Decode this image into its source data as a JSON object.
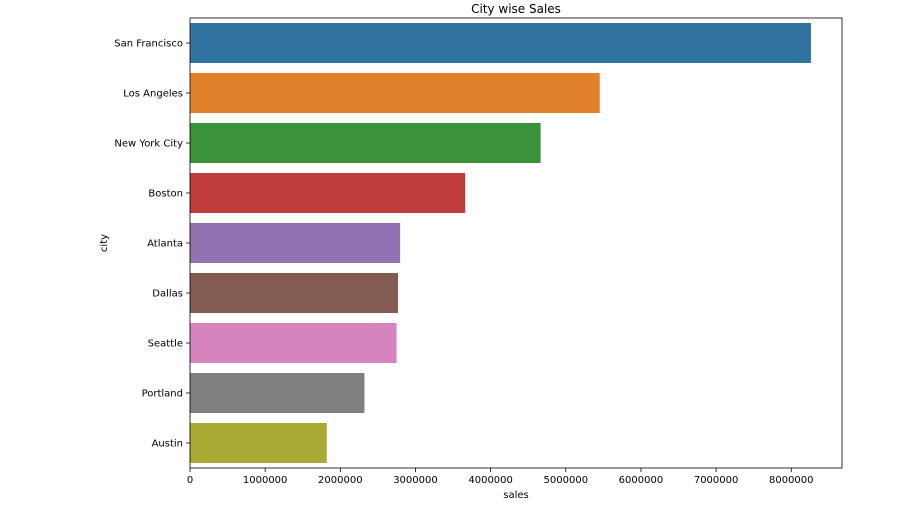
{
  "chart_data": {
    "type": "bar",
    "orientation": "horizontal",
    "title": "City wise Sales",
    "xlabel": "sales",
    "ylabel": "city",
    "categories": [
      "San Francisco",
      "Los Angeles",
      "New York City",
      "Boston",
      "Atlanta",
      "Dallas",
      "Seattle",
      "Portland",
      "Austin"
    ],
    "values": [
      8262000,
      5452000,
      4665000,
      3662000,
      2796000,
      2768000,
      2748000,
      2321000,
      1820000
    ],
    "colors": [
      "#3274a1",
      "#e1812c",
      "#3a923a",
      "#c03d3e",
      "#9372b2",
      "#845b53",
      "#d684bd",
      "#7f7f7f",
      "#a9aa35"
    ],
    "xlim": [
      0,
      8675000
    ],
    "xticks": [
      0,
      1000000,
      2000000,
      3000000,
      4000000,
      5000000,
      6000000,
      7000000,
      8000000
    ],
    "xtick_labels": [
      "0",
      "1000000",
      "2000000",
      "3000000",
      "4000000",
      "5000000",
      "6000000",
      "7000000",
      "8000000"
    ],
    "grid": false,
    "legend": "none"
  }
}
